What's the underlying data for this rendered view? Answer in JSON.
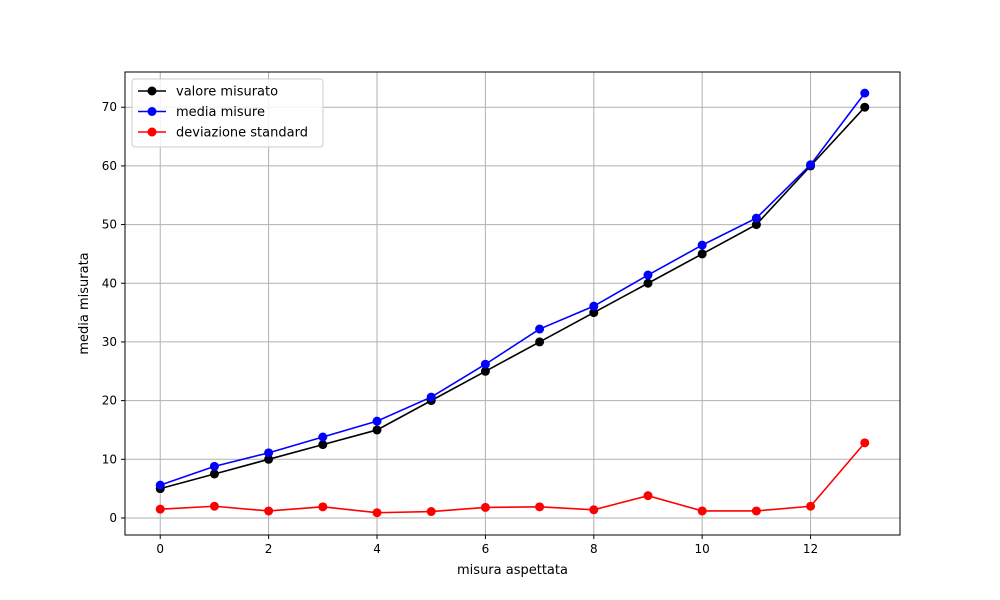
{
  "chart_data": {
    "type": "line",
    "title": "",
    "xlabel": "misura aspettata",
    "ylabel": "media misurata",
    "xlim": [
      -0.65,
      13.65
    ],
    "ylim": [
      -2.9,
      76.0
    ],
    "xticks": [
      0,
      2,
      4,
      6,
      8,
      10,
      12
    ],
    "yticks": [
      0,
      10,
      20,
      30,
      40,
      50,
      60,
      70
    ],
    "grid": true,
    "legend_position": "top-left",
    "x": [
      0,
      1,
      2,
      3,
      4,
      5,
      6,
      7,
      8,
      9,
      10,
      11,
      12,
      13
    ],
    "series": [
      {
        "name": "valore misurato",
        "color": "#000000",
        "values": [
          5,
          7.5,
          10,
          12.5,
          15,
          20,
          25,
          30,
          35,
          40,
          45,
          50,
          60,
          70
        ]
      },
      {
        "name": "media misure",
        "color": "#0000ff",
        "values": [
          5.6,
          8.8,
          11.1,
          13.8,
          16.5,
          20.6,
          26.2,
          32.2,
          36.1,
          41.4,
          46.5,
          51.1,
          60.2,
          72.4
        ]
      },
      {
        "name": "deviazione standard",
        "color": "#ff0000",
        "values": [
          1.5,
          2.0,
          1.2,
          1.9,
          0.9,
          1.1,
          1.8,
          1.9,
          1.4,
          3.8,
          1.2,
          1.2,
          2.0,
          12.8
        ]
      }
    ]
  }
}
